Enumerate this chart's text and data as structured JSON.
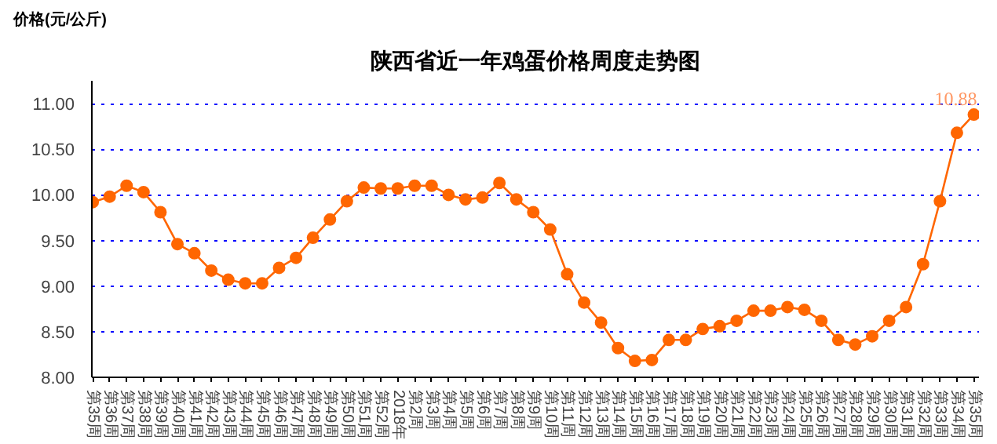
{
  "chart_data": {
    "type": "line",
    "title": "陕西省近一年鸡蛋价格周度走势图",
    "ylabel": "价格(元/公斤)",
    "categories": [
      "第35周",
      "第36周",
      "第37周",
      "第38周",
      "第39周",
      "第40周",
      "第41周",
      "第42周",
      "第43周",
      "第44周",
      "第45周",
      "第46周",
      "第47周",
      "第48周",
      "第49周",
      "第50周",
      "第51周",
      "第52周",
      "2018年",
      "第2周",
      "第3周",
      "第4周",
      "第5周",
      "第6周",
      "第7周",
      "第8周",
      "第9周",
      "第10周",
      "第11周",
      "第12周",
      "第13周",
      "第14周",
      "第15周",
      "第16周",
      "第17周",
      "第18周",
      "第19周",
      "第20周",
      "第21周",
      "第22周",
      "第23周",
      "第24周",
      "第25周",
      "第26周",
      "第27周",
      "第28周",
      "第29周",
      "第30周",
      "第31周",
      "第32周",
      "第33周",
      "第34周",
      "第35周"
    ],
    "series": [
      {
        "color": "#ff6600",
        "values": [
          9.92,
          9.98,
          10.1,
          10.03,
          9.81,
          9.46,
          9.36,
          9.17,
          9.07,
          9.03,
          9.03,
          9.2,
          9.31,
          9.53,
          9.73,
          9.93,
          10.08,
          10.07,
          10.07,
          10.1,
          10.1,
          10.0,
          9.95,
          9.97,
          10.13,
          9.95,
          9.81,
          9.62,
          9.13,
          8.82,
          8.6,
          8.32,
          8.18,
          8.19,
          8.41,
          8.41,
          8.53,
          8.56,
          8.62,
          8.73,
          8.73,
          8.77,
          8.74,
          8.62,
          8.41,
          8.36,
          8.45,
          8.62,
          8.77,
          9.24,
          9.93,
          10.68,
          10.88
        ],
        "value_labels": [
          null,
          null,
          null,
          null,
          null,
          null,
          null,
          null,
          null,
          null,
          null,
          null,
          null,
          null,
          null,
          null,
          null,
          null,
          null,
          null,
          null,
          null,
          null,
          null,
          null,
          null,
          null,
          null,
          null,
          null,
          null,
          null,
          null,
          null,
          null,
          null,
          null,
          null,
          null,
          null,
          null,
          null,
          null,
          null,
          null,
          null,
          null,
          null,
          null,
          null,
          null,
          null,
          "10.88"
        ]
      }
    ],
    "ylim": [
      8,
      11.25
    ],
    "yticks": [
      {
        "value": 8,
        "label": "8.00"
      },
      {
        "value": 8.5,
        "label": "8.50"
      },
      {
        "value": 9,
        "label": "9.00"
      },
      {
        "value": 9.5,
        "label": "9.50"
      },
      {
        "value": 10,
        "label": "10.00"
      },
      {
        "value": 10.5,
        "label": "10.50"
      },
      {
        "value": 11,
        "label": "11.00"
      }
    ],
    "grid": "y",
    "marker": "circle",
    "line_style": "solid"
  }
}
